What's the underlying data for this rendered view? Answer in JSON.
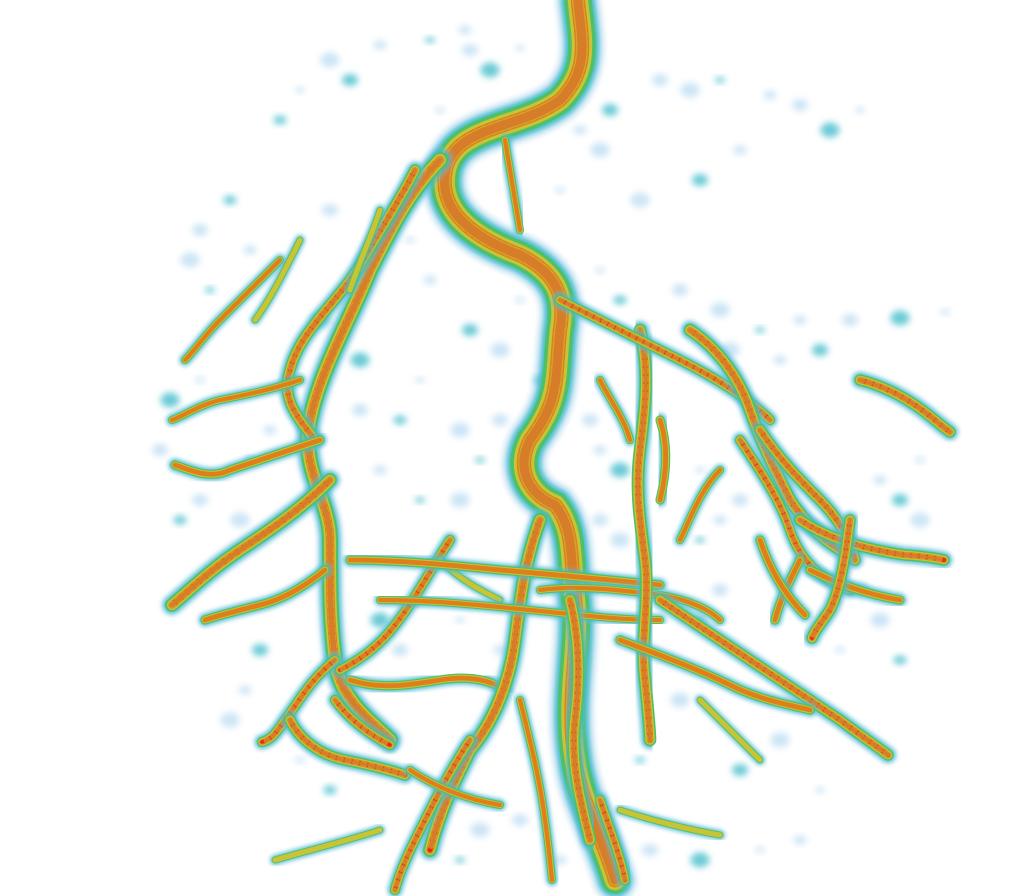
{
  "image": {
    "subject": "vessel-tree-volume-rendering",
    "background_color": "#ffffff",
    "palette": {
      "core": "#e8231c",
      "inner": "#e07a1a",
      "mid": "#c9c436",
      "outer": "#4fc06a",
      "halo": "#37b8c7",
      "haze": "#8ec5ea"
    }
  }
}
